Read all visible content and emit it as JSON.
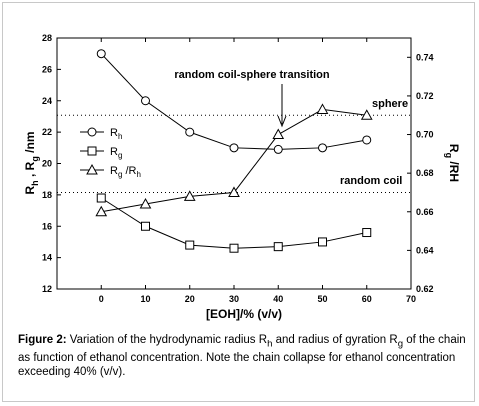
{
  "chart_data": {
    "type": "line",
    "xlabel": "[EOH]/% (v/v)",
    "ylabel_left": "R",
    "ylabel_right": "R",
    "xlim": [
      -10,
      70
    ],
    "ylim_left": [
      12,
      28
    ],
    "ylim_right": [
      0.62,
      0.75
    ],
    "x_ticks": [
      0,
      10,
      20,
      30,
      40,
      50,
      60,
      70
    ],
    "y_left_ticks": [
      12,
      14,
      16,
      18,
      20,
      22,
      24,
      26,
      28
    ],
    "y_right_ticks": [
      0.62,
      0.64,
      0.66,
      0.68,
      0.7,
      0.72,
      0.74
    ],
    "y_right_tick_labels": [
      "0.62",
      "0.64",
      "0.66",
      "0.68",
      "0.70",
      "0.72",
      "0.74"
    ],
    "series": [
      {
        "name": "Rh",
        "axis": "left",
        "marker": "circle",
        "x": [
          0,
          10,
          20,
          30,
          40,
          50,
          60
        ],
        "y": [
          27.0,
          24.0,
          22.0,
          21.0,
          20.9,
          21.0,
          21.5
        ]
      },
      {
        "name": "Rg",
        "axis": "left",
        "marker": "square",
        "x": [
          0,
          10,
          20,
          30,
          40,
          50,
          60
        ],
        "y": [
          17.8,
          16.0,
          14.8,
          14.6,
          14.7,
          15.0,
          15.6
        ]
      },
      {
        "name": "Rg /Rh",
        "axis": "right",
        "marker": "triangle",
        "x": [
          0,
          10,
          20,
          30,
          40,
          50,
          60
        ],
        "y": [
          0.66,
          0.664,
          0.668,
          0.67,
          0.7,
          0.713,
          0.71
        ]
      }
    ],
    "annotations": [
      "random coil-sphere transition",
      "sphere",
      "random coil"
    ],
    "reference_lines_right": [
      0.71,
      0.67
    ]
  },
  "caption": {
    "label": "Figure 2:",
    "text_1": " Variation of the hydrodynamic radius R",
    "sub_1": "h",
    "text_2": " and radius of gyration R",
    "sub_2": "g",
    "text_3": " of the chain as function of   ethanol concentration. Note the chain collapse for ethanol concentration exceeding 40% (v/v)."
  }
}
